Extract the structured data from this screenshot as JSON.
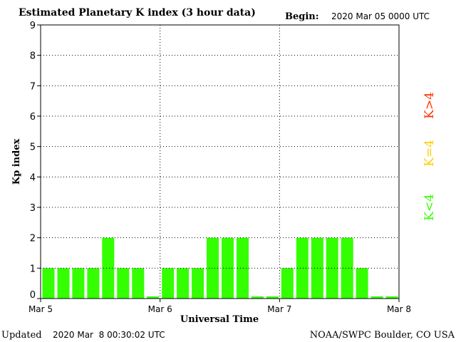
{
  "header": {
    "title": "Estimated Planetary K index (3 hour data)",
    "begin_label": "Begin:",
    "begin_value": "2020 Mar 05 0000 UTC"
  },
  "footer": {
    "updated_label": "Updated",
    "updated_value": "2020 Mar  8 00:30:02 UTC",
    "source": "NOAA/SWPC Boulder, CO USA"
  },
  "legend": {
    "items": [
      {
        "label": "K<4",
        "color": "#33ff00"
      },
      {
        "label": "K=4",
        "color": "#ffcc00"
      },
      {
        "label": "K>4",
        "color": "#ff3300"
      }
    ]
  },
  "colors": {
    "bar_low": "#33ff00",
    "bar_mid": "#ffcc00",
    "bar_high": "#ff3300",
    "axis": "#000000",
    "grid": "#000000"
  },
  "chart_data": {
    "type": "bar",
    "title": "Estimated Planetary K index (3 hour data)",
    "xlabel": "Universal Time",
    "ylabel": "Kp index",
    "ylim": [
      0,
      9
    ],
    "yticks": [
      0,
      1,
      2,
      3,
      4,
      5,
      6,
      7,
      8,
      9
    ],
    "xtick_labels": [
      "Mar 5",
      "Mar 6",
      "Mar 7",
      "Mar 8"
    ],
    "bars_per_day": 8,
    "grid": true,
    "legend_position": "right",
    "values": [
      1,
      1,
      1,
      1,
      2,
      1,
      1,
      0,
      1,
      1,
      1,
      2,
      2,
      2,
      0,
      0,
      1,
      2,
      2,
      2,
      2,
      1,
      0,
      0
    ]
  }
}
